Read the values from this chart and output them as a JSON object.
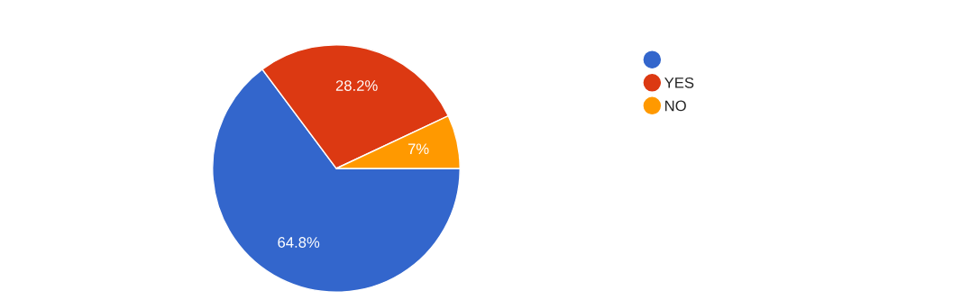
{
  "chart_data": {
    "type": "pie",
    "categories": [
      null,
      "YES",
      "NO"
    ],
    "values": [
      64.8,
      28.2,
      7
    ],
    "colors": [
      "#3366cc",
      "#dc3912",
      "#ff9900"
    ],
    "value_labels": [
      "64.8%",
      "28.2%",
      "7%"
    ],
    "legend": "top right"
  }
}
